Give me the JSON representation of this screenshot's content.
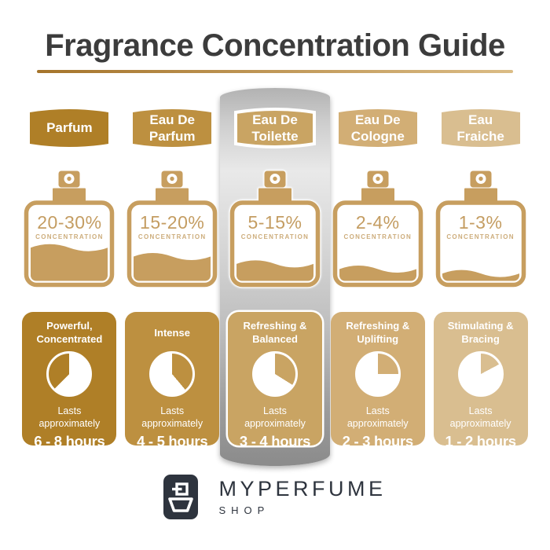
{
  "title": "Fragrance Concentration Guide",
  "labels": {
    "concentration": "CONCENTRATION",
    "lasts": "Lasts approximately"
  },
  "columns": [
    {
      "name": "Parfum",
      "concentration": "20-30%",
      "fill_percent": 45,
      "trait": "Powerful, Concentrated",
      "duration": "6 - 8 hours",
      "color": "#af7f27",
      "clock_start": 225,
      "clock_sweep": 135,
      "highlighted": false
    },
    {
      "name": "Eau De Parfum",
      "concentration": "15-20%",
      "fill_percent": 33,
      "trait": "Intense",
      "duration": "4 - 5 hours",
      "color": "#bd9040",
      "clock_start": 0,
      "clock_sweep": 140,
      "highlighted": false
    },
    {
      "name": "Eau De Toilette",
      "concentration": "5-15%",
      "fill_percent": 23,
      "trait": "Refreshing & Balanced",
      "duration": "3 - 4 hours",
      "color": "#c9a463",
      "clock_start": 0,
      "clock_sweep": 122,
      "highlighted": true
    },
    {
      "name": "Eau De Cologne",
      "concentration": "2-4%",
      "fill_percent": 16,
      "trait": "Refreshing & Uplifting",
      "duration": "2 - 3 hours",
      "color": "#d2ae75",
      "clock_start": 0,
      "clock_sweep": 90,
      "highlighted": false
    },
    {
      "name": "Eau Fraiche",
      "concentration": "1-3%",
      "fill_percent": 10,
      "trait": "Stimulating & Bracing",
      "duration": "1 - 2 hours",
      "color": "#d9be90",
      "clock_start": 0,
      "clock_sweep": 62,
      "highlighted": false
    }
  ],
  "bottle_colors": {
    "ink": "#c79e5f",
    "percent_text": "#c49d62",
    "label_text": "#cdad7c"
  },
  "theme": {
    "title_color": "#3c3c3c",
    "rule_left": "#a5742b",
    "rule_right": "#dbbc85"
  },
  "logo": {
    "name": "MYPERFUME",
    "shop": "SHOP",
    "color": "#2e343e"
  }
}
